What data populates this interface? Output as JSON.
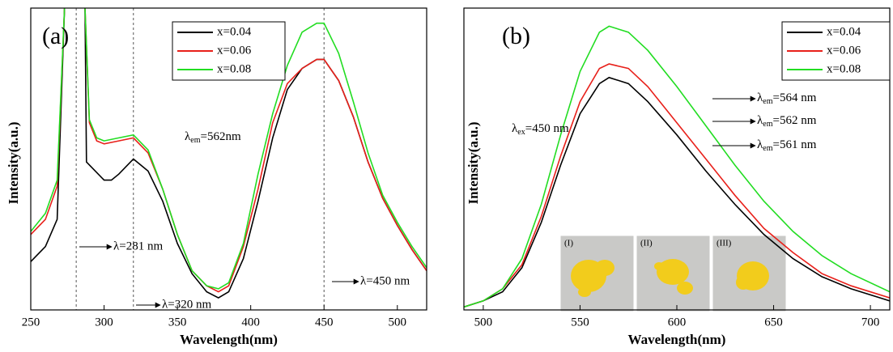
{
  "chart_data": [
    {
      "type": "line",
      "panel_label": "(a)",
      "xlabel": "Wavelength(nm)",
      "ylabel": "Intensity(a.u.)",
      "xlim": [
        250,
        520
      ],
      "xticks": [
        250,
        300,
        350,
        400,
        450,
        500
      ],
      "ylim": [
        0,
        100
      ],
      "series": [
        {
          "name": "x=0.04",
          "color": "#000000",
          "x": [
            250,
            260,
            268,
            273,
            280,
            287,
            288,
            292,
            300,
            305,
            310,
            320,
            330,
            340,
            350,
            360,
            370,
            378,
            385,
            395,
            405,
            415,
            425,
            435,
            445,
            450,
            460,
            470,
            480,
            490,
            500,
            510,
            520
          ],
          "values": [
            16,
            21,
            30,
            100,
            null,
            100,
            49,
            47,
            43,
            43,
            45,
            50,
            46,
            36,
            22,
            12,
            6,
            4,
            6,
            17,
            36,
            57,
            73,
            80,
            83,
            83,
            76,
            64,
            49,
            37,
            28,
            20,
            13
          ]
        },
        {
          "name": "x=0.06",
          "color": "#e8201a",
          "x": [
            250,
            260,
            268,
            273,
            280,
            287,
            290,
            295,
            300,
            310,
            320,
            330,
            340,
            350,
            360,
            370,
            378,
            385,
            395,
            405,
            415,
            425,
            435,
            445,
            450,
            460,
            470,
            480,
            490,
            500,
            510,
            520
          ],
          "values": [
            25,
            30,
            41,
            100,
            null,
            100,
            62,
            56,
            55,
            56,
            57,
            52,
            40,
            25,
            13,
            8,
            6,
            8,
            21,
            40,
            62,
            75,
            80,
            83,
            83,
            76,
            64,
            49,
            37,
            28,
            20,
            13
          ]
        },
        {
          "name": "x=0.08",
          "color": "#22dd22",
          "x": [
            250,
            260,
            268,
            273,
            280,
            287,
            290,
            295,
            300,
            310,
            320,
            330,
            340,
            350,
            360,
            370,
            378,
            385,
            395,
            405,
            415,
            425,
            435,
            445,
            450,
            460,
            470,
            480,
            490,
            500,
            510,
            520
          ],
          "values": [
            26,
            32,
            43,
            100,
            null,
            100,
            63,
            57,
            56,
            57,
            58,
            53,
            40,
            25,
            13,
            8,
            7,
            9,
            22,
            45,
            65,
            81,
            92,
            95,
            95,
            85,
            69,
            52,
            38,
            29,
            21,
            14
          ]
        }
      ],
      "vlines": [
        281,
        320,
        450
      ],
      "annotations": [
        {
          "text": "λ=281 nm"
        },
        {
          "text": "λ=320 nm"
        },
        {
          "text": "λ=450 nm"
        },
        {
          "symbol": "λ",
          "sub": "em",
          "text": "=562nm"
        }
      ]
    },
    {
      "type": "line",
      "panel_label": "(b)",
      "xlabel": "Wavelength(nm)",
      "ylabel": "Intensity(a.u.)",
      "xlim": [
        490,
        710
      ],
      "xticks": [
        500,
        550,
        600,
        650,
        700
      ],
      "ylim": [
        0,
        100
      ],
      "series": [
        {
          "name": "x=0.04",
          "color": "#000000",
          "x": [
            490,
            500,
            510,
            520,
            530,
            540,
            550,
            560,
            565,
            575,
            585,
            600,
            615,
            630,
            645,
            660,
            675,
            690,
            710
          ],
          "values": [
            1,
            3,
            6,
            14,
            29,
            48,
            65,
            75,
            77,
            75,
            69,
            58,
            46,
            35,
            25,
            17,
            11,
            7,
            3
          ]
        },
        {
          "name": "x=0.06",
          "color": "#e8201a",
          "x": [
            490,
            500,
            510,
            520,
            530,
            540,
            550,
            560,
            565,
            575,
            585,
            600,
            615,
            630,
            645,
            660,
            675,
            690,
            710
          ],
          "values": [
            1,
            3,
            7,
            15,
            31,
            51,
            69,
            80,
            81.5,
            80,
            74,
            62,
            50,
            38,
            27,
            19,
            12,
            8,
            4
          ]
        },
        {
          "name": "x=0.08",
          "color": "#22dd22",
          "x": [
            490,
            500,
            510,
            520,
            530,
            540,
            550,
            560,
            565,
            575,
            585,
            600,
            615,
            630,
            645,
            660,
            675,
            690,
            710
          ],
          "values": [
            1,
            3,
            7,
            17,
            35,
            58,
            79,
            92,
            94,
            92,
            86,
            74,
            61,
            48,
            36,
            26,
            18,
            12,
            6
          ]
        }
      ],
      "annotations": [
        {
          "symbol": "λ",
          "sub": "ex",
          "text": "=450 nm"
        },
        {
          "symbol": "λ",
          "sub": "em",
          "text": "=564 nm"
        },
        {
          "symbol": "λ",
          "sub": "em",
          "text": "=562 nm"
        },
        {
          "symbol": "λ",
          "sub": "em",
          "text": "=561 nm"
        }
      ],
      "insets": [
        "(I)",
        "(II)",
        "(III)"
      ]
    }
  ]
}
